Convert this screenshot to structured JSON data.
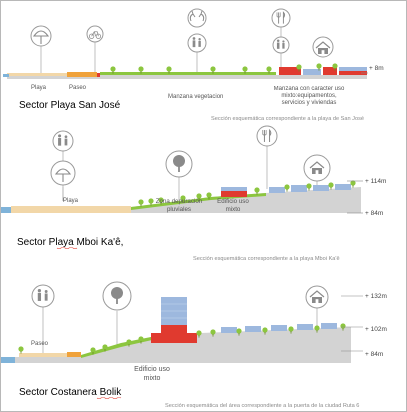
{
  "sections": [
    {
      "title": "Sector Playa San José",
      "caption": "Sección esquemática correspondiente a la playa de San José",
      "zones": [
        "Playa",
        "Paseo",
        "Manzana vegetacion",
        "Manzana con carácter  uso mixto:equipamentos, servicios y viviendas"
      ],
      "levels": [
        "+ 8m"
      ]
    },
    {
      "title": "Sector Playa Mboi Ka'ê,",
      "caption": "Sección esquemática correspondiente a la playa Mboi Ka'ê",
      "zones": [
        "Playa",
        "Zona depuración pluviales",
        "Edificio uso mixto"
      ],
      "levels": [
        "+ 114m",
        "+ 84m"
      ]
    },
    {
      "title": "Sector Costanera Bolik",
      "caption": "Sección esquemática del área correspondiente a la puerta de la ciudad Ruta 6",
      "zones": [
        "Paseo",
        "Edificio uso mixto"
      ],
      "levels": [
        "+ 132m",
        "+ 102m",
        "+ 84m"
      ]
    }
  ],
  "icons": [
    "umbrella-icon",
    "bicycle-icon",
    "hands-icon",
    "family-icon",
    "cutlery-icon",
    "house-icon",
    "tree-icon"
  ],
  "colors": {
    "ground": "#cfcfcf",
    "sand": "#f2d7a8",
    "path": "#f0a23a",
    "water": "#7fb3d9",
    "vegetation": "#8cc63f",
    "building_red": "#e03a2f",
    "building_blue": "#9db8de"
  }
}
